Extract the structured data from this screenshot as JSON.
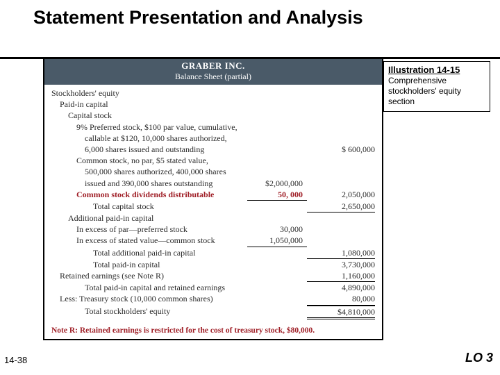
{
  "title": "Statement Presentation and Analysis",
  "company": "GRABER INC.",
  "subtitle": "Balance Sheet (partial)",
  "callout": {
    "title": "Illustration 14-15",
    "text": "Comprehensive stockholders' equity section"
  },
  "rows": [
    {
      "label": "Stockholders' equity",
      "ind": 0
    },
    {
      "label": "Paid-in capital",
      "ind": 1
    },
    {
      "label": "Capital stock",
      "ind": 2
    },
    {
      "label": "9% Preferred stock, $100 par value, cumulative,",
      "ind": 3
    },
    {
      "label": "callable at $120, 10,000 shares authorized,",
      "ind": 4
    },
    {
      "label": "6,000 shares issued and outstanding",
      "ind": 4,
      "amt2": "$   600,000"
    },
    {
      "label": "Common stock, no par, $5 stated value,",
      "ind": 3
    },
    {
      "label": "500,000 shares authorized, 400,000 shares",
      "ind": 4
    },
    {
      "label": "issued and 390,000 shares outstanding",
      "ind": 4,
      "amt1": "$2,000,000"
    },
    {
      "label": "Common stock dividends distributable",
      "ind": 3,
      "amt1": "50, 000",
      "amt2": "2,050,000",
      "neg": true,
      "ul1": true
    },
    {
      "label": "Total capital stock",
      "ind": 5,
      "amt2": "2,650,000",
      "ul2": true
    },
    {
      "label": "Additional paid-in capital",
      "ind": 2
    },
    {
      "label": "In excess of par—preferred stock",
      "ind": 3,
      "amt1": "30,000"
    },
    {
      "label": "In excess of stated value—common stock",
      "ind": 3,
      "amt1": "1,050,000",
      "ul1": true
    },
    {
      "label": "Total additional paid-in capital",
      "ind": 5,
      "amt2": "1,080,000",
      "ul2": true
    },
    {
      "label": "Total paid-in capital",
      "ind": 5,
      "amt2": "3,730,000"
    },
    {
      "label": "Retained earnings (see Note R)",
      "ind": 1,
      "amt2": "1,160,000",
      "ul2": true
    },
    {
      "label": "Total paid-in capital and retained earnings",
      "ind": 4,
      "amt2": "4,890,000"
    },
    {
      "label": "Less: Treasury stock (10,000 common shares)",
      "ind": 1,
      "amt2": "80,000",
      "ul2": true
    },
    {
      "label": "Total stockholders' equity",
      "ind": 4,
      "amt2": "$4,810,000",
      "dbl": true
    }
  ],
  "note": "Note R: Retained earnings is restricted for the cost of treasury stock, $80,000.",
  "page_num": "14-38",
  "lo": "LO 3",
  "colors": {
    "header_bg": "#4a5a68",
    "neg_red": "#a02028",
    "rule": "#000000"
  }
}
